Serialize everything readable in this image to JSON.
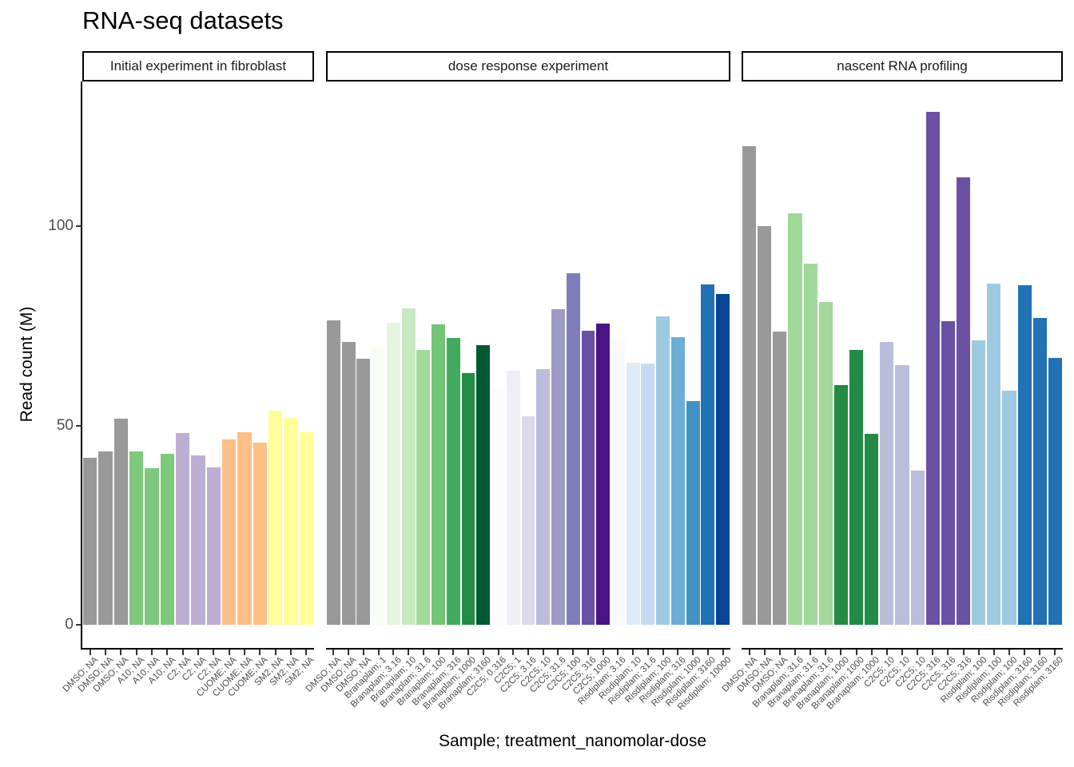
{
  "title": "RNA-seq datasets",
  "axes": {
    "x_title": "Sample; treatment_nanomolar-dose",
    "y_title": "Read count (M)",
    "y_tick_labels": [
      "0",
      "50",
      "100"
    ]
  },
  "chart_data": {
    "type": "bar",
    "title": "RNA-seq datasets",
    "xlabel": "Sample; treatment_nanomolar-dose",
    "ylabel": "Read count (M)",
    "ylim": [
      0,
      137
    ],
    "y_ticks": [
      0,
      50,
      100
    ],
    "grid": false,
    "legend": "none",
    "facets": [
      {
        "label": "Initial experiment in fibroblast",
        "bars": [
          {
            "category": "DMSO; NA",
            "value": 41.9,
            "color": "#999999"
          },
          {
            "category": "DMSO; NA",
            "value": 43.4,
            "color": "#999999"
          },
          {
            "category": "DMSO; NA",
            "value": 51.8,
            "color": "#999999"
          },
          {
            "category": "A10; NA",
            "value": 43.5,
            "color": "#7FC97F"
          },
          {
            "category": "A10; NA",
            "value": 39.3,
            "color": "#7FC97F"
          },
          {
            "category": "A10; NA",
            "value": 42.9,
            "color": "#7FC97F"
          },
          {
            "category": "C2; NA",
            "value": 48.0,
            "color": "#BEAED4"
          },
          {
            "category": "C2; NA",
            "value": 42.5,
            "color": "#BEAED4"
          },
          {
            "category": "C2; NA",
            "value": 39.5,
            "color": "#BEAED4"
          },
          {
            "category": "CUOME; NA",
            "value": 46.4,
            "color": "#FDC086"
          },
          {
            "category": "CUOME; NA",
            "value": 48.3,
            "color": "#FDC086"
          },
          {
            "category": "CUOME; NA",
            "value": 45.7,
            "color": "#FDC086"
          },
          {
            "category": "SM2; NA",
            "value": 53.8,
            "color": "#FFFF99"
          },
          {
            "category": "SM2; NA",
            "value": 52.0,
            "color": "#FFFF99"
          },
          {
            "category": "SM2; NA",
            "value": 48.3,
            "color": "#FFFF99"
          }
        ]
      },
      {
        "label": "dose response experiment",
        "bars": [
          {
            "category": "DMSO; NA",
            "value": 76.3,
            "color": "#999999"
          },
          {
            "category": "DMSO; NA",
            "value": 71.0,
            "color": "#999999"
          },
          {
            "category": "DMSO; NA",
            "value": 66.7,
            "color": "#999999"
          },
          {
            "category": "Branaplam; 1",
            "value": 69.9,
            "color": "#F7FCF5"
          },
          {
            "category": "Branaplam; 3.16",
            "value": 75.8,
            "color": "#E5F5E0"
          },
          {
            "category": "Branaplam; 10",
            "value": 79.4,
            "color": "#C7E9C0"
          },
          {
            "category": "Branaplam; 31.6",
            "value": 69.0,
            "color": "#A1D99B"
          },
          {
            "category": "Branaplam; 100",
            "value": 75.3,
            "color": "#74C476"
          },
          {
            "category": "Branaplam; 316",
            "value": 71.9,
            "color": "#41AB5D"
          },
          {
            "category": "Branaplam; 1000",
            "value": 63.1,
            "color": "#238B45"
          },
          {
            "category": "Branaplam; 3160",
            "value": 70.1,
            "color": "#005A32"
          },
          {
            "category": "C2C5; 0.316",
            "value": 59.2,
            "color": "#FCFBFD"
          },
          {
            "category": "C2C5; 1",
            "value": 63.7,
            "color": "#EFEDF5"
          },
          {
            "category": "C2C5; 3.16",
            "value": 52.3,
            "color": "#DADAEB"
          },
          {
            "category": "C2C5; 10",
            "value": 64.2,
            "color": "#BCBDDC"
          },
          {
            "category": "C2C5; 31.6",
            "value": 79.2,
            "color": "#9E9AC8"
          },
          {
            "category": "C2C5; 100",
            "value": 88.2,
            "color": "#807DBA"
          },
          {
            "category": "C2C5; 316",
            "value": 73.7,
            "color": "#6A51A3"
          },
          {
            "category": "C2C5; 1000",
            "value": 75.6,
            "color": "#4A1486"
          },
          {
            "category": "Risdiplam; 3.16",
            "value": 71.7,
            "color": "#F7FBFF"
          },
          {
            "category": "Risdiplam; 10",
            "value": 65.7,
            "color": "#DEEBF7"
          },
          {
            "category": "Risdiplam; 31.6",
            "value": 65.5,
            "color": "#C6DBEF"
          },
          {
            "category": "Risdiplam; 100",
            "value": 77.4,
            "color": "#9ECAE1"
          },
          {
            "category": "Risdiplam; 316",
            "value": 72.1,
            "color": "#6BAED6"
          },
          {
            "category": "Risdiplam; 1000",
            "value": 56.1,
            "color": "#4292C6"
          },
          {
            "category": "Risdiplam; 3160",
            "value": 85.4,
            "color": "#2171B5"
          },
          {
            "category": "Risdiplam; 10000",
            "value": 83.0,
            "color": "#084594"
          }
        ]
      },
      {
        "label": "nascent RNA profiling",
        "bars": [
          {
            "category": "DMSO; NA",
            "value": 120.1,
            "color": "#999999"
          },
          {
            "category": "DMSO; NA",
            "value": 99.9,
            "color": "#999999"
          },
          {
            "category": "DMSO; NA",
            "value": 73.5,
            "color": "#999999"
          },
          {
            "category": "Branaplam; 31.6",
            "value": 103.3,
            "color": "#A1D99B"
          },
          {
            "category": "Branaplam; 31.6",
            "value": 90.6,
            "color": "#A1D99B"
          },
          {
            "category": "Branaplam; 31.6",
            "value": 80.9,
            "color": "#A1D99B"
          },
          {
            "category": "Branaplam; 1000",
            "value": 60.2,
            "color": "#238B45"
          },
          {
            "category": "Branaplam; 1000",
            "value": 68.9,
            "color": "#238B45"
          },
          {
            "category": "Branaplam; 1000",
            "value": 47.8,
            "color": "#238B45"
          },
          {
            "category": "C2C5; 10",
            "value": 71.0,
            "color": "#BCBDDC"
          },
          {
            "category": "C2C5; 10",
            "value": 65.1,
            "color": "#BCBDDC"
          },
          {
            "category": "C2C5; 10",
            "value": 38.7,
            "color": "#BCBDDC"
          },
          {
            "category": "C2C5; 316",
            "value": 128.7,
            "color": "#6A51A3"
          },
          {
            "category": "C2C5; 316",
            "value": 76.2,
            "color": "#6A51A3"
          },
          {
            "category": "C2C5; 316",
            "value": 112.3,
            "color": "#6A51A3"
          },
          {
            "category": "Risdiplam; 100",
            "value": 71.3,
            "color": "#9ECAE1"
          },
          {
            "category": "Risdiplam; 100",
            "value": 85.6,
            "color": "#9ECAE1"
          },
          {
            "category": "Risdiplam; 100",
            "value": 58.7,
            "color": "#9ECAE1"
          },
          {
            "category": "Risdiplam; 3160",
            "value": 85.1,
            "color": "#2171B5"
          },
          {
            "category": "Risdiplam; 3160",
            "value": 76.9,
            "color": "#2171B5"
          },
          {
            "category": "Risdiplam; 3160",
            "value": 67.0,
            "color": "#2171B5"
          }
        ]
      }
    ]
  }
}
